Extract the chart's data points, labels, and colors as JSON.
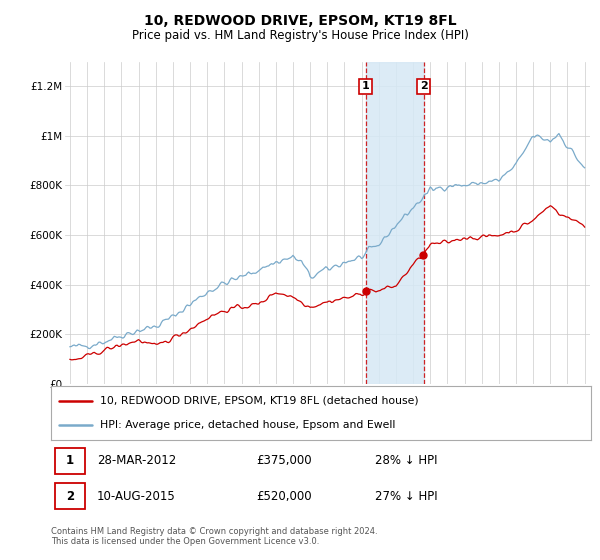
{
  "title": "10, REDWOOD DRIVE, EPSOM, KT19 8FL",
  "subtitle": "Price paid vs. HM Land Registry's House Price Index (HPI)",
  "ylim": [
    0,
    1300000
  ],
  "yticks": [
    0,
    200000,
    400000,
    600000,
    800000,
    1000000,
    1200000
  ],
  "ytick_labels": [
    "£0",
    "£200K",
    "£400K",
    "£600K",
    "£800K",
    "£1M",
    "£1.2M"
  ],
  "legend_red": "10, REDWOOD DRIVE, EPSOM, KT19 8FL (detached house)",
  "legend_blue": "HPI: Average price, detached house, Epsom and Ewell",
  "footnote": "Contains HM Land Registry data © Crown copyright and database right 2024.\nThis data is licensed under the Open Government Licence v3.0.",
  "background_color": "#ffffff",
  "plot_bg_color": "#ffffff",
  "grid_color": "#cccccc",
  "red_color": "#cc0000",
  "blue_color": "#7aaaca",
  "shade_color": "#d6e8f5",
  "sale_box_color": "#cc0000",
  "sale1_year": 2012.23,
  "sale1_price": 375000,
  "sale2_year": 2015.61,
  "sale2_price": 520000
}
